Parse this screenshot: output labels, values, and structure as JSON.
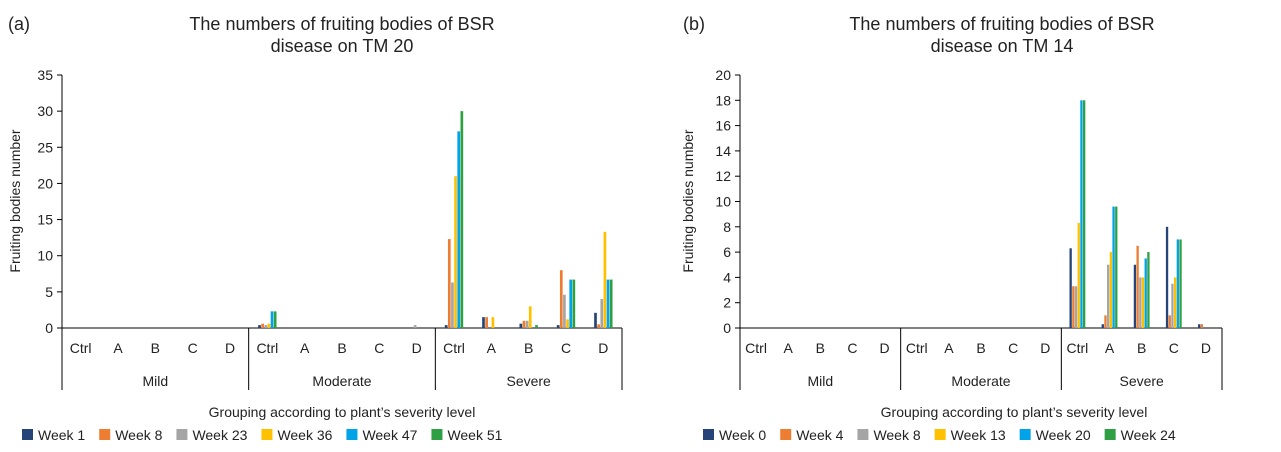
{
  "chart_data": [
    {
      "type": "bar",
      "panel_label": "(a)",
      "title_lines": [
        "The numbers of fruiting bodies of BSR",
        "disease on TM 20"
      ],
      "ylabel": "Fruiting bodies number",
      "xlabel": "Grouping according to plant’s severity level",
      "ylim": [
        0,
        35
      ],
      "yticks": [
        0,
        5,
        10,
        15,
        20,
        25,
        30,
        35
      ],
      "groups": [
        "Mild",
        "Moderate",
        "Severe"
      ],
      "subcategories": [
        "Ctrl",
        "A",
        "B",
        "C",
        "D"
      ],
      "legend_position": "bottom",
      "series": [
        {
          "name": "Week 1",
          "color": "#264478",
          "values": [
            0,
            0,
            0,
            0,
            0,
            0.4,
            0,
            0,
            0,
            0,
            0.4,
            1.5,
            0.6,
            0.4,
            2.1
          ]
        },
        {
          "name": "Week 8",
          "color": "#ED7D31",
          "values": [
            0,
            0,
            0,
            0,
            0,
            0.6,
            0,
            0,
            0,
            0,
            12.3,
            1.5,
            1.0,
            8.0,
            0.5
          ]
        },
        {
          "name": "Week 23",
          "color": "#A5A5A5",
          "values": [
            0,
            0,
            0,
            0,
            0,
            0.4,
            0,
            0,
            0,
            0.4,
            6.3,
            0,
            1.0,
            4.6,
            4.0
          ]
        },
        {
          "name": "Week 36",
          "color": "#FFC000",
          "values": [
            0,
            0,
            0,
            0,
            0,
            0.6,
            0,
            0,
            0,
            0,
            21.0,
            1.5,
            3.0,
            1.2,
            13.3
          ]
        },
        {
          "name": "Week 47",
          "color": "#00A2E8",
          "values": [
            0,
            0,
            0,
            0,
            0,
            2.3,
            0,
            0,
            0,
            0,
            27.2,
            0,
            0,
            6.7,
            6.7
          ]
        },
        {
          "name": "Week 51",
          "color": "#2EA043",
          "values": [
            0,
            0,
            0,
            0,
            0,
            2.3,
            0,
            0,
            0,
            0,
            30.0,
            0,
            0.4,
            6.7,
            6.7
          ]
        }
      ]
    },
    {
      "type": "bar",
      "panel_label": "(b)",
      "title_lines": [
        "The numbers of fruiting bodies of BSR",
        "disease on TM 14"
      ],
      "ylabel": "Fruiting bodies number",
      "xlabel": "Grouping according to plant’s severity level",
      "ylim": [
        0,
        20
      ],
      "yticks": [
        0,
        2,
        4,
        6,
        8,
        10,
        12,
        14,
        16,
        18,
        20
      ],
      "groups": [
        "Mild",
        "Moderate",
        "Severe"
      ],
      "subcategories": [
        "Ctrl",
        "A",
        "B",
        "C",
        "D"
      ],
      "legend_position": "bottom",
      "series": [
        {
          "name": "Week 0",
          "color": "#264478",
          "values": [
            0,
            0,
            0,
            0,
            0,
            0,
            0,
            0,
            0,
            0,
            6.3,
            0.3,
            5.0,
            8.0,
            0.3
          ]
        },
        {
          "name": "Week 4",
          "color": "#ED7D31",
          "values": [
            0,
            0,
            0,
            0,
            0,
            0,
            0,
            0,
            0,
            0,
            3.3,
            1.0,
            6.5,
            1.0,
            0.3
          ]
        },
        {
          "name": "Week 8",
          "color": "#A5A5A5",
          "values": [
            0,
            0,
            0,
            0,
            0,
            0,
            0,
            0,
            0,
            0,
            3.3,
            5.0,
            4.0,
            3.5,
            0
          ]
        },
        {
          "name": "Week 13",
          "color": "#FFC000",
          "values": [
            0,
            0,
            0,
            0,
            0,
            0,
            0,
            0,
            0,
            0,
            8.3,
            6.0,
            4.0,
            4.0,
            0
          ]
        },
        {
          "name": "Week 20",
          "color": "#00A2E8",
          "values": [
            0,
            0,
            0,
            0,
            0,
            0,
            0,
            0,
            0,
            0,
            18.0,
            9.6,
            5.5,
            7.0,
            0
          ]
        },
        {
          "name": "Week 24",
          "color": "#2EA043",
          "values": [
            0,
            0,
            0,
            0,
            0,
            0,
            0,
            0,
            0,
            0,
            18.0,
            9.6,
            6.0,
            7.0,
            0
          ]
        }
      ]
    }
  ]
}
